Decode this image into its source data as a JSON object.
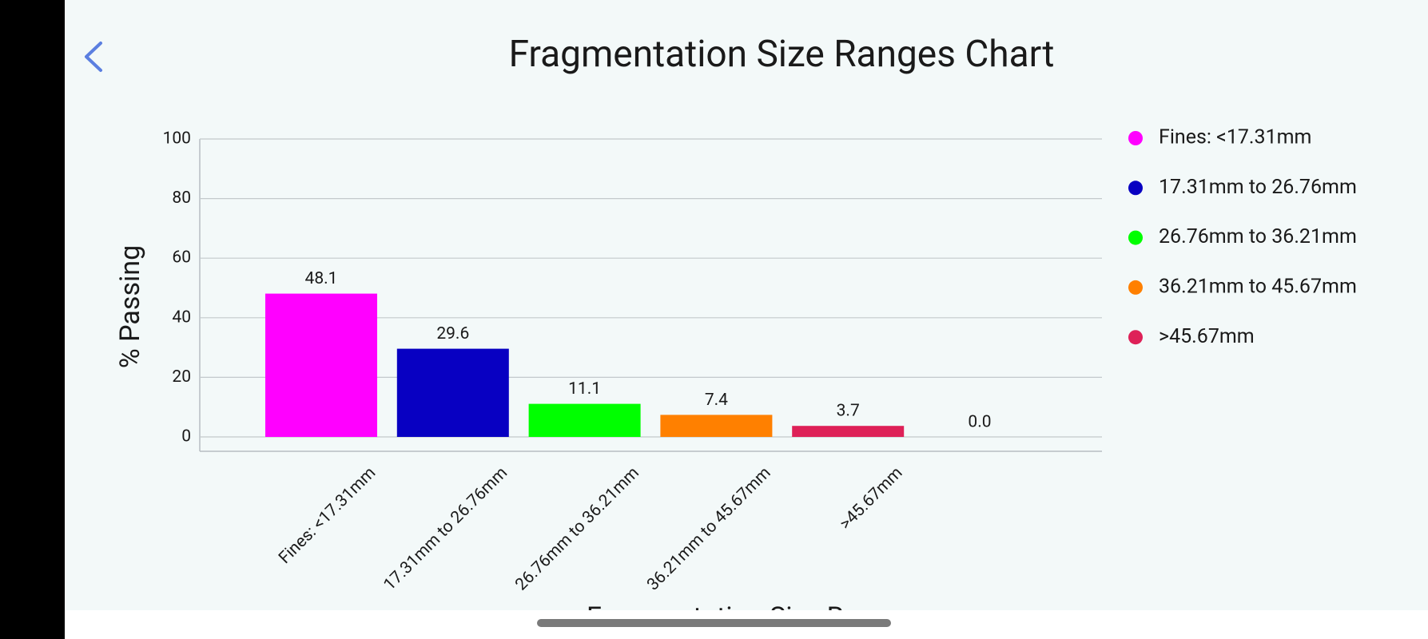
{
  "chart_data": {
    "type": "bar",
    "title": "Fragmentation Size Ranges Chart",
    "y_label": "% Passing",
    "x_label": "Fragmentation Size Range",
    "categories": [
      "Fines: <17.31mm",
      "17.31mm to 26.76mm",
      "26.76mm to 36.21mm",
      "36.21mm to 45.67mm",
      ">45.67mm",
      null
    ],
    "values": [
      48.1,
      29.6,
      11.1,
      7.4,
      3.7,
      0
    ],
    "value_labels": [
      "48.1",
      "29.6",
      "11.1",
      "7.4",
      "3.7",
      "0.0"
    ],
    "colors": [
      "#ff00ff",
      "#0800c2",
      "#00ff00",
      "#ff8000",
      "#de2158",
      "#888888"
    ],
    "ylim": [
      0,
      100
    ],
    "yticks": [
      0,
      20,
      40,
      60,
      80,
      100
    ],
    "grid": true,
    "legend": "right"
  }
}
